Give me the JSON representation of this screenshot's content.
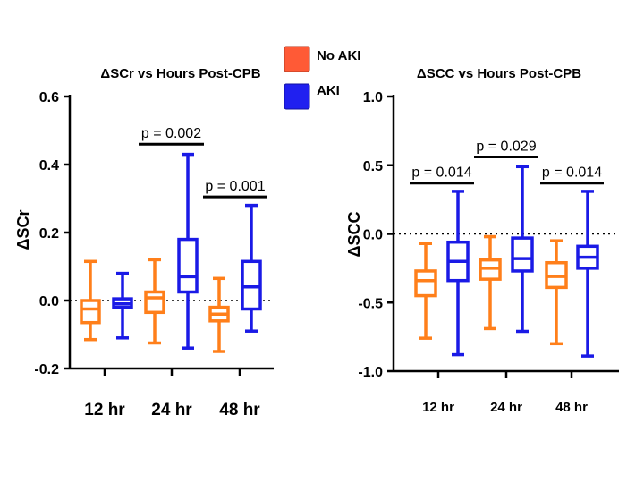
{
  "legend": [
    {
      "label": "No AKI",
      "color": "#FF5A36"
    },
    {
      "label": "AKI",
      "color": "#2020F0"
    }
  ],
  "colors": {
    "no_aki": "#FF7F1A",
    "aki": "#1A1AE6"
  },
  "chart_data": [
    {
      "type": "box",
      "title": "ΔSCr vs Hours Post-CPB",
      "ylabel": "ΔSCr",
      "ylim": [
        -0.2,
        0.6
      ],
      "yticks": [
        "0.6",
        "0.4",
        "0.2",
        "0.0",
        "-0.2"
      ],
      "ytick_values": [
        0.6,
        0.4,
        0.2,
        0.0,
        -0.2
      ],
      "categories": [
        "12 hr",
        "24 hr",
        "48 hr"
      ],
      "reference_line": 0.0,
      "series": [
        {
          "name": "No AKI",
          "boxes": [
            {
              "min": -0.115,
              "q1": -0.065,
              "median": -0.025,
              "q3": 0.0,
              "max": 0.115
            },
            {
              "min": -0.125,
              "q1": -0.035,
              "median": 0.008,
              "q3": 0.025,
              "max": 0.12
            },
            {
              "min": -0.15,
              "q1": -0.06,
              "median": -0.04,
              "q3": -0.02,
              "max": 0.065
            }
          ]
        },
        {
          "name": "AKI",
          "boxes": [
            {
              "min": -0.11,
              "q1": -0.02,
              "median": -0.01,
              "q3": 0.005,
              "max": 0.08
            },
            {
              "min": -0.14,
              "q1": 0.025,
              "median": 0.07,
              "q3": 0.18,
              "max": 0.43
            },
            {
              "min": -0.09,
              "q1": -0.025,
              "median": 0.04,
              "q3": 0.115,
              "max": 0.28
            }
          ]
        }
      ],
      "annotations": [
        {
          "p_prefix": "p = ",
          "p_value": "0.002",
          "category": 1,
          "y": 0.46
        },
        {
          "p_prefix": "p = ",
          "p_value": "0.001",
          "category": 2,
          "y": 0.305
        }
      ]
    },
    {
      "type": "box",
      "title": "ΔSCC vs Hours Post-CPB",
      "ylabel": "ΔSCC",
      "ylim": [
        -1.0,
        1.0
      ],
      "yticks": [
        "1.0",
        "0.5",
        "0.0",
        "-0.5",
        "-1.0"
      ],
      "ytick_values": [
        1.0,
        0.5,
        0.0,
        -0.5,
        -1.0
      ],
      "categories": [
        "12 hr",
        "24 hr",
        "48 hr"
      ],
      "reference_line": 0.0,
      "series": [
        {
          "name": "No AKI",
          "boxes": [
            {
              "min": -0.76,
              "q1": -0.45,
              "median": -0.34,
              "q3": -0.27,
              "max": -0.07
            },
            {
              "min": -0.69,
              "q1": -0.33,
              "median": -0.25,
              "q3": -0.19,
              "max": -0.02
            },
            {
              "min": -0.8,
              "q1": -0.39,
              "median": -0.31,
              "q3": -0.21,
              "max": -0.05
            }
          ]
        },
        {
          "name": "AKI",
          "boxes": [
            {
              "min": -0.88,
              "q1": -0.34,
              "median": -0.2,
              "q3": -0.06,
              "max": 0.31
            },
            {
              "min": -0.71,
              "q1": -0.27,
              "median": -0.18,
              "q3": -0.03,
              "max": 0.49
            },
            {
              "min": -0.89,
              "q1": -0.25,
              "median": -0.17,
              "q3": -0.09,
              "max": 0.31
            }
          ]
        }
      ],
      "annotations": [
        {
          "p_prefix": "p = ",
          "p_value": "0.014",
          "category": 0,
          "y": 0.37
        },
        {
          "p_prefix": "p = ",
          "p_value": "0.029",
          "category": 1,
          "y": 0.56
        },
        {
          "p_prefix": "p = ",
          "p_value": "0.014",
          "category": 2,
          "y": 0.37
        }
      ]
    }
  ]
}
